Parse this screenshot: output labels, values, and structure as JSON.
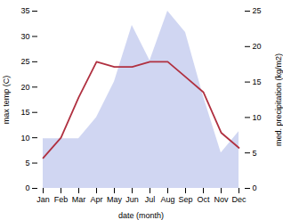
{
  "chart_data": {
    "type": "line",
    "categories": [
      "Jan",
      "Feb",
      "Mar",
      "Apr",
      "May",
      "Jun",
      "Jul",
      "Aug",
      "Sep",
      "Oct",
      "Nov",
      "Dec"
    ],
    "xlabel": "date (month)",
    "ylabel": "max temp (C)",
    "y2label": "med. precipitation (kg/m2)",
    "ylim": [
      0,
      35
    ],
    "yticks": [
      0,
      5,
      10,
      15,
      20,
      25,
      30,
      35
    ],
    "y2lim": [
      0,
      25
    ],
    "y2ticks": [
      0,
      5,
      10,
      15,
      20,
      25
    ],
    "series": [
      {
        "type": "area",
        "axis": "y2",
        "color": "#aab4e8",
        "values": [
          7,
          7,
          7,
          10,
          15,
          23,
          18,
          25,
          22,
          13,
          5,
          8
        ]
      },
      {
        "type": "line",
        "color": "#b03040",
        "values": [
          6,
          10,
          18,
          25,
          24,
          24,
          25,
          25,
          22,
          19,
          11,
          8
        ]
      }
    ]
  }
}
